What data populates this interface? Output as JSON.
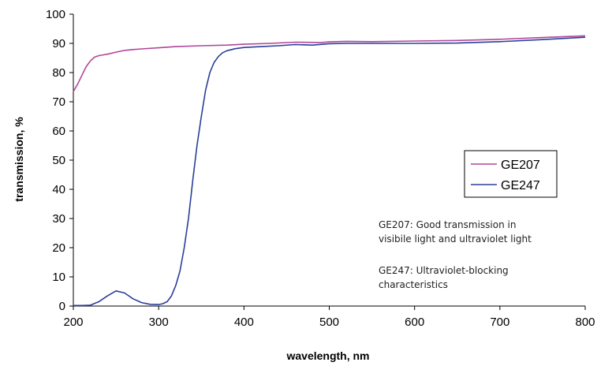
{
  "chart_data": {
    "type": "line",
    "title": "",
    "xlabel": "wavelength, nm",
    "ylabel": "transmission, %",
    "xlim": [
      200,
      800
    ],
    "ylim": [
      0,
      100
    ],
    "x_ticks": [
      200,
      300,
      400,
      500,
      600,
      700,
      800
    ],
    "y_ticks": [
      0,
      10,
      20,
      30,
      40,
      50,
      60,
      70,
      80,
      90,
      100
    ],
    "grid": false,
    "legend_position": "right",
    "series": [
      {
        "name": "GE207",
        "color": "#b0479a",
        "points": [
          [
            200,
            73.5
          ],
          [
            205,
            76
          ],
          [
            210,
            79
          ],
          [
            215,
            82
          ],
          [
            220,
            84
          ],
          [
            225,
            85.3
          ],
          [
            230,
            85.8
          ],
          [
            240,
            86.3
          ],
          [
            250,
            87
          ],
          [
            260,
            87.6
          ],
          [
            270,
            87.9
          ],
          [
            280,
            88.1
          ],
          [
            300,
            88.5
          ],
          [
            320,
            88.9
          ],
          [
            350,
            89.2
          ],
          [
            380,
            89.4
          ],
          [
            400,
            89.7
          ],
          [
            430,
            90
          ],
          [
            460,
            90.4
          ],
          [
            490,
            90.3
          ],
          [
            500,
            90.5
          ],
          [
            520,
            90.7
          ],
          [
            550,
            90.6
          ],
          [
            600,
            90.8
          ],
          [
            650,
            91
          ],
          [
            700,
            91.4
          ],
          [
            750,
            92
          ],
          [
            800,
            92.6
          ]
        ]
      },
      {
        "name": "GE247",
        "color": "#2b3f99",
        "points": [
          [
            200,
            0.2
          ],
          [
            210,
            0.2
          ],
          [
            220,
            0.3
          ],
          [
            230,
            1.5
          ],
          [
            240,
            3.5
          ],
          [
            250,
            5.2
          ],
          [
            260,
            4.5
          ],
          [
            270,
            2.5
          ],
          [
            280,
            1.2
          ],
          [
            290,
            0.6
          ],
          [
            300,
            0.5
          ],
          [
            305,
            0.8
          ],
          [
            310,
            1.5
          ],
          [
            315,
            3.5
          ],
          [
            320,
            7
          ],
          [
            325,
            12
          ],
          [
            330,
            20
          ],
          [
            335,
            30
          ],
          [
            340,
            43
          ],
          [
            345,
            55
          ],
          [
            350,
            65
          ],
          [
            355,
            74
          ],
          [
            360,
            80
          ],
          [
            365,
            83.5
          ],
          [
            370,
            85.5
          ],
          [
            375,
            86.8
          ],
          [
            380,
            87.5
          ],
          [
            390,
            88.2
          ],
          [
            400,
            88.6
          ],
          [
            420,
            88.9
          ],
          [
            440,
            89.2
          ],
          [
            460,
            89.6
          ],
          [
            480,
            89.4
          ],
          [
            500,
            89.9
          ],
          [
            520,
            90
          ],
          [
            550,
            90
          ],
          [
            600,
            90
          ],
          [
            650,
            90.1
          ],
          [
            700,
            90.6
          ],
          [
            750,
            91.3
          ],
          [
            800,
            92.1
          ]
        ]
      }
    ],
    "annotations": [
      [
        "GE207: Good transmission in",
        "visibile light and ultraviolet light"
      ],
      [
        "GE247: Ultraviolet-blocking",
        "characteristics"
      ]
    ]
  }
}
